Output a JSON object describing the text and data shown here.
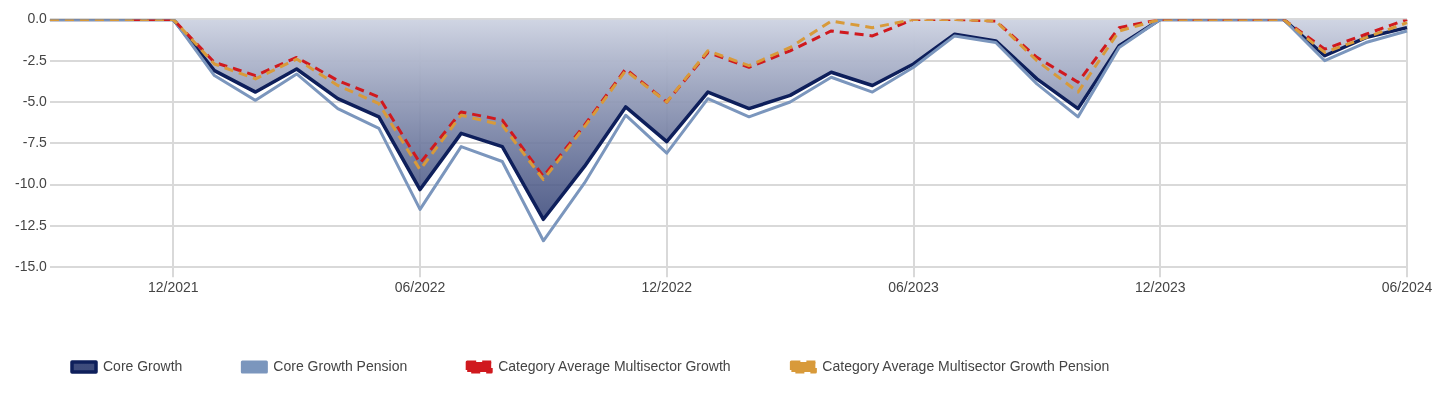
{
  "chart_data": {
    "type": "line",
    "categories": [
      null,
      null,
      null,
      "12/2021",
      null,
      null,
      null,
      null,
      null,
      "06/2022",
      null,
      null,
      null,
      null,
      null,
      "12/2022",
      null,
      null,
      null,
      null,
      null,
      "06/2023",
      null,
      null,
      null,
      null,
      null,
      "12/2023",
      null,
      null,
      null,
      null,
      null,
      "06/2024"
    ],
    "series": [
      {
        "name": "Core Growth",
        "type": "area",
        "color": "#0e1f5b",
        "line_style": "solid",
        "values": [
          0,
          0,
          0,
          0,
          -3.1,
          -4.4,
          -3.0,
          -4.8,
          -5.9,
          -10.3,
          -6.9,
          -7.7,
          -12.1,
          -8.9,
          -5.3,
          -7.4,
          -4.4,
          -5.4,
          -4.6,
          -3.2,
          -4.0,
          -2.7,
          -0.9,
          -1.3,
          -3.6,
          -5.4,
          -1.6,
          0,
          0,
          0,
          0,
          -2.2,
          -1.1,
          -0.5
        ]
      },
      {
        "name": "Core Growth Pension",
        "color": "#7b96bd",
        "line_style": "solid",
        "values": [
          0,
          0,
          0,
          0,
          -3.4,
          -4.9,
          -3.3,
          -5.4,
          -6.6,
          -11.5,
          -7.7,
          -8.6,
          -13.4,
          -9.9,
          -5.8,
          -8.1,
          -4.8,
          -5.9,
          -5.0,
          -3.5,
          -4.4,
          -2.9,
          -1.0,
          -1.4,
          -3.9,
          -5.9,
          -1.7,
          0,
          0,
          0,
          0,
          -2.5,
          -1.4,
          -0.7
        ]
      },
      {
        "name": "Category Average Multisector Growth",
        "color": "#d0191e",
        "line_style": "dashed",
        "values": [
          null,
          null,
          0,
          0,
          -2.6,
          -3.4,
          -2.3,
          -3.7,
          -4.7,
          -8.7,
          -5.6,
          -6.1,
          -9.5,
          -6.4,
          -3.0,
          -5.0,
          -2.0,
          -2.9,
          -1.9,
          -0.7,
          -1.0,
          0,
          0,
          -0.1,
          -2.3,
          -3.8,
          -0.5,
          0,
          0,
          0,
          0,
          -1.8,
          -0.9,
          0
        ]
      },
      {
        "name": "Category Average Multisector Growth Pension",
        "color": "#d89a3a",
        "line_style": "dashed",
        "values": [
          0,
          0,
          0,
          0,
          -2.7,
          -3.6,
          -2.4,
          -4.0,
          -5.1,
          -9.1,
          -5.8,
          -6.4,
          -9.7,
          -6.5,
          -3.1,
          -5.0,
          -1.9,
          -2.8,
          -1.7,
          -0.1,
          -0.5,
          0,
          0,
          -0.1,
          -2.5,
          -4.4,
          -0.7,
          0,
          0,
          0,
          0,
          -2.0,
          -1.1,
          -0.2
        ]
      }
    ],
    "ylim": [
      -15,
      0
    ],
    "yticks": [
      {
        "value": 0,
        "label": "0.0"
      },
      {
        "value": -2.5,
        "label": "-2.5"
      },
      {
        "value": -5,
        "label": "-5.0"
      },
      {
        "value": -7.5,
        "label": "-7.5"
      },
      {
        "value": -10,
        "label": "-10.0"
      },
      {
        "value": -12.5,
        "label": "-12.5"
      },
      {
        "value": -15,
        "label": "-15.0"
      }
    ],
    "grid": true,
    "legend": "bottom left",
    "marker": "none"
  }
}
